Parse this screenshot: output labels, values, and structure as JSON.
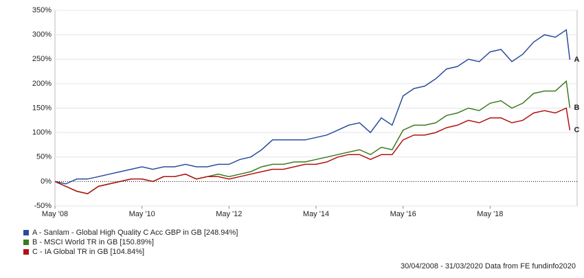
{
  "chart_data": {
    "type": "line",
    "x": [
      "2008-05",
      "2008-08",
      "2008-11",
      "2009-02",
      "2009-05",
      "2009-08",
      "2009-11",
      "2010-02",
      "2010-05",
      "2010-08",
      "2010-11",
      "2011-02",
      "2011-05",
      "2011-08",
      "2011-11",
      "2012-02",
      "2012-05",
      "2012-08",
      "2012-11",
      "2013-02",
      "2013-05",
      "2013-08",
      "2013-11",
      "2014-02",
      "2014-05",
      "2014-08",
      "2014-11",
      "2015-02",
      "2015-05",
      "2015-08",
      "2015-11",
      "2016-02",
      "2016-05",
      "2016-08",
      "2016-11",
      "2017-02",
      "2017-05",
      "2017-08",
      "2017-11",
      "2018-02",
      "2018-05",
      "2018-08",
      "2018-11",
      "2019-02",
      "2019-05",
      "2019-08",
      "2019-11",
      "2020-02",
      "2020-03"
    ],
    "series": [
      {
        "name": "A - Sanlam - Global High Quality C Acc GBP in GB [248.94%]",
        "end_label": "A",
        "color": "#2a4b9b",
        "values": [
          0,
          -5,
          5,
          5,
          10,
          15,
          20,
          25,
          30,
          25,
          30,
          30,
          35,
          30,
          30,
          35,
          35,
          45,
          50,
          65,
          85,
          85,
          85,
          85,
          90,
          95,
          105,
          115,
          120,
          100,
          130,
          115,
          175,
          190,
          195,
          210,
          230,
          235,
          250,
          245,
          265,
          270,
          245,
          260,
          285,
          300,
          295,
          310,
          248.94
        ]
      },
      {
        "name": "B - MSCI World TR in GB [150.89%]",
        "end_label": "B",
        "color": "#3b7a1e",
        "values": [
          0,
          -10,
          -20,
          -25,
          -10,
          -5,
          0,
          5,
          5,
          0,
          10,
          10,
          15,
          5,
          10,
          15,
          10,
          15,
          20,
          30,
          35,
          35,
          40,
          40,
          45,
          50,
          55,
          60,
          65,
          55,
          70,
          65,
          105,
          115,
          115,
          120,
          135,
          140,
          150,
          145,
          160,
          165,
          150,
          160,
          180,
          185,
          185,
          205,
          150.89
        ]
      },
      {
        "name": "C - IA Global TR in GB [104.84%]",
        "end_label": "C",
        "color": "#b40f0f",
        "values": [
          0,
          -10,
          -20,
          -25,
          -10,
          -5,
          0,
          5,
          5,
          0,
          10,
          10,
          15,
          5,
          10,
          10,
          5,
          10,
          15,
          20,
          25,
          25,
          30,
          35,
          35,
          40,
          50,
          55,
          55,
          45,
          55,
          55,
          85,
          95,
          95,
          100,
          110,
          115,
          125,
          120,
          130,
          130,
          120,
          125,
          140,
          145,
          140,
          150,
          104.84
        ]
      }
    ],
    "xlim": [
      "2008-05",
      "2020-05"
    ],
    "xticks": [
      {
        "value": "2008-05",
        "label": "May '08"
      },
      {
        "value": "2010-05",
        "label": "May '10"
      },
      {
        "value": "2012-05",
        "label": "May '12"
      },
      {
        "value": "2014-05",
        "label": "May '14"
      },
      {
        "value": "2016-05",
        "label": "May '16"
      },
      {
        "value": "2018-05",
        "label": "May '18"
      }
    ],
    "ylim": [
      -50,
      350
    ],
    "yticks": [
      {
        "value": -50,
        "label": "-50%"
      },
      {
        "value": 0,
        "label": "0%"
      },
      {
        "value": 50,
        "label": "50%"
      },
      {
        "value": 100,
        "label": "100%"
      },
      {
        "value": 150,
        "label": "150%"
      },
      {
        "value": 200,
        "label": "200%"
      },
      {
        "value": 250,
        "label": "250%"
      },
      {
        "value": 300,
        "label": "300%"
      },
      {
        "value": 350,
        "label": "350%"
      }
    ],
    "grid": true,
    "footer": "30/04/2008 - 31/03/2020 Data from FE fundinfo2020"
  }
}
